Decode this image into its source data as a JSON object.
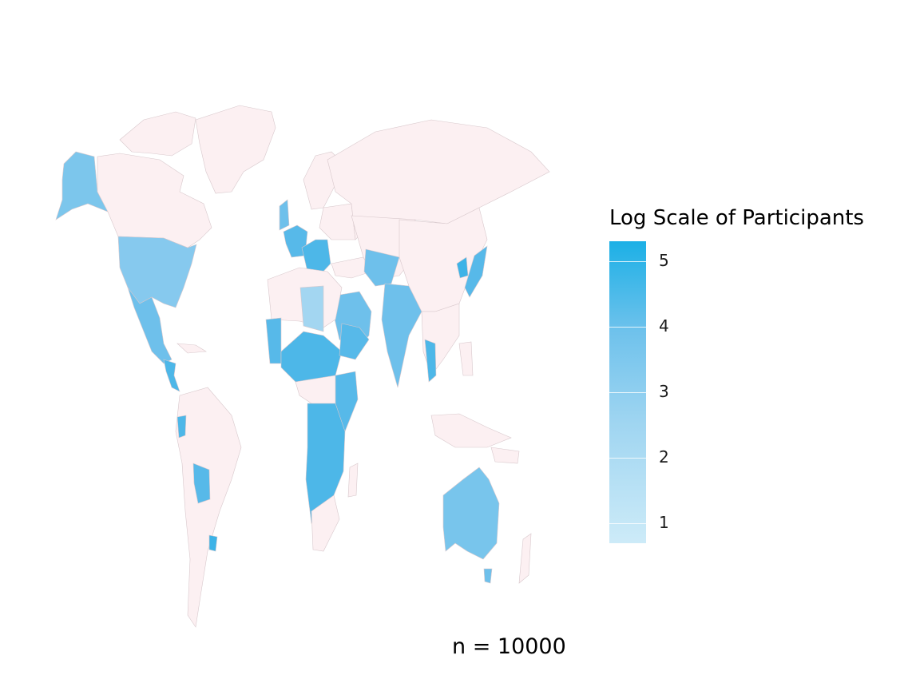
{
  "legend": {
    "title": "Log Scale of Participants",
    "min": 0.7,
    "max": 5.3,
    "ticks": [
      "1",
      "2",
      "3",
      "4",
      "5"
    ],
    "colors": {
      "low": "#cdebf8",
      "high": "#1cb0e6",
      "no_data": "#fcf0f2",
      "border": "#d9c8cc"
    }
  },
  "caption": "n = 10000"
}
